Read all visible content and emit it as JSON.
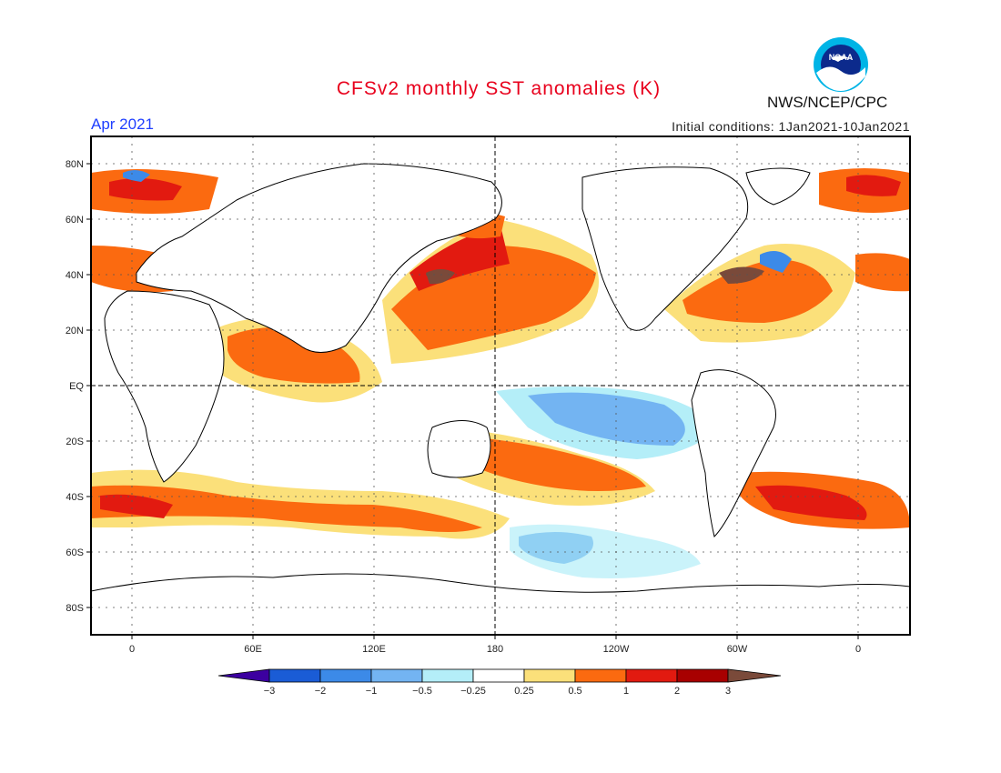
{
  "header": {
    "title": "CFSv2 monthly SST anomalies (K)",
    "period": "Apr 2021",
    "initial_conditions": "Initial conditions: 1Jan2021-10Jan2021",
    "agency": "NWS/NCEP/CPC",
    "logo_text": "NOAA"
  },
  "map": {
    "lat_labels": [
      "80N",
      "60N",
      "40N",
      "20N",
      "EQ",
      "20S",
      "40S",
      "60S",
      "80S"
    ],
    "lon_labels": [
      "0",
      "60E",
      "120E",
      "180",
      "120W",
      "60W",
      "0"
    ],
    "center_longitude": "180"
  },
  "legend": {
    "labels": [
      "-3",
      "-2",
      "-1",
      "-0.5",
      "-0.25",
      "0.25",
      "0.5",
      "1",
      "2",
      "3"
    ],
    "colors": [
      "#3c00a0",
      "#1a5cd6",
      "#3c8ae8",
      "#73b4f2",
      "#b4eef8",
      "#ffffff",
      "#fbe07a",
      "#fb6a10",
      "#e21a10",
      "#a80000",
      "#7a4a3a"
    ]
  },
  "colors": {
    "title": "#e8001c",
    "period": "#1f3fff",
    "positive_anomaly": "#fb6a10",
    "negative_anomaly": "#73b4f2"
  }
}
